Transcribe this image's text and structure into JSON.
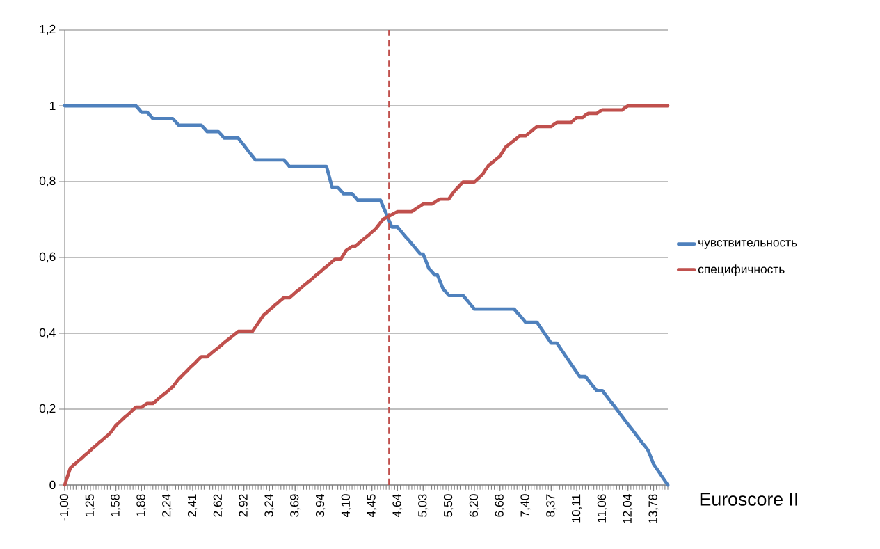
{
  "chart_data": {
    "type": "line",
    "xlabel": "Euroscore II",
    "categories": [
      "-1,00",
      null,
      null,
      null,
      null,
      null,
      null,
      null,
      null,
      "1,25",
      null,
      null,
      null,
      null,
      null,
      null,
      null,
      null,
      "1,58",
      null,
      null,
      null,
      null,
      null,
      null,
      null,
      null,
      "1,88",
      null,
      null,
      null,
      null,
      null,
      null,
      null,
      null,
      "2,24",
      null,
      null,
      null,
      null,
      null,
      null,
      null,
      null,
      "2,41",
      null,
      null,
      null,
      null,
      null,
      null,
      null,
      null,
      "2,62",
      null,
      null,
      null,
      null,
      null,
      null,
      null,
      null,
      "2,92",
      null,
      null,
      null,
      null,
      null,
      null,
      null,
      null,
      "3,24",
      null,
      null,
      null,
      null,
      null,
      null,
      null,
      null,
      "3,69",
      null,
      null,
      null,
      null,
      null,
      null,
      null,
      null,
      "3,94",
      null,
      null,
      null,
      null,
      null,
      null,
      null,
      null,
      "4,10",
      null,
      null,
      null,
      null,
      null,
      null,
      null,
      null,
      "4,45",
      null,
      null,
      null,
      null,
      null,
      null,
      null,
      null,
      "4,64",
      null,
      null,
      null,
      null,
      null,
      null,
      null,
      null,
      "5,03",
      null,
      null,
      null,
      null,
      null,
      null,
      null,
      null,
      "5,50",
      null,
      null,
      null,
      null,
      null,
      null,
      null,
      null,
      "6,20",
      null,
      null,
      null,
      null,
      null,
      null,
      null,
      null,
      "6,68",
      null,
      null,
      null,
      null,
      null,
      null,
      null,
      null,
      "7,40",
      null,
      null,
      null,
      null,
      null,
      null,
      null,
      null,
      "8,37",
      null,
      null,
      null,
      null,
      null,
      null,
      null,
      null,
      "10,11",
      null,
      null,
      null,
      null,
      null,
      null,
      null,
      null,
      "11,06",
      null,
      null,
      null,
      null,
      null,
      null,
      null,
      null,
      "12,04",
      null,
      null,
      null,
      null,
      null,
      null,
      null,
      null,
      "13,78",
      null,
      null,
      null,
      null,
      null
    ],
    "series": [
      {
        "name": "чувствительность",
        "color": "#4f81bd",
        "values": [
          1,
          1,
          1,
          1,
          1,
          1,
          1,
          1,
          1,
          1,
          1,
          1,
          1,
          1,
          1,
          1,
          1,
          1,
          1,
          1,
          1,
          1,
          1,
          1,
          1,
          1,
          0.992,
          0.983,
          0.983,
          0.983,
          0.975,
          0.966,
          0.966,
          0.966,
          0.966,
          0.966,
          0.966,
          0.966,
          0.966,
          0.958,
          0.949,
          0.949,
          0.949,
          0.949,
          0.949,
          0.949,
          0.949,
          0.949,
          0.949,
          0.941,
          0.932,
          0.932,
          0.932,
          0.932,
          0.932,
          0.924,
          0.915,
          0.915,
          0.915,
          0.915,
          0.915,
          0.915,
          0.905,
          0.896,
          0.886,
          0.876,
          0.867,
          0.857,
          0.857,
          0.857,
          0.857,
          0.857,
          0.857,
          0.857,
          0.857,
          0.857,
          0.857,
          0.857,
          0.849,
          0.84,
          0.84,
          0.84,
          0.84,
          0.84,
          0.84,
          0.84,
          0.84,
          0.84,
          0.84,
          0.84,
          0.84,
          0.84,
          0.84,
          0.813,
          0.785,
          0.785,
          0.785,
          0.777,
          0.768,
          0.768,
          0.768,
          0.768,
          0.76,
          0.751,
          0.751,
          0.751,
          0.751,
          0.751,
          0.751,
          0.751,
          0.751,
          0.751,
          0.733,
          0.716,
          0.698,
          0.68,
          0.68,
          0.68,
          0.671,
          0.662,
          0.653,
          0.645,
          0.636,
          0.627,
          0.618,
          0.609,
          0.609,
          0.59,
          0.571,
          0.563,
          0.554,
          0.554,
          0.536,
          0.517,
          0.509,
          0.5,
          0.5,
          0.5,
          0.5,
          0.5,
          0.5,
          0.491,
          0.482,
          0.473,
          0.464,
          0.464,
          0.464,
          0.464,
          0.464,
          0.464,
          0.464,
          0.464,
          0.464,
          0.464,
          0.464,
          0.464,
          0.464,
          0.464,
          0.464,
          0.455,
          0.447,
          0.438,
          0.429,
          0.429,
          0.429,
          0.429,
          0.429,
          0.418,
          0.407,
          0.396,
          0.385,
          0.374,
          0.374,
          0.374,
          0.363,
          0.352,
          0.341,
          0.33,
          0.319,
          0.308,
          0.297,
          0.286,
          0.286,
          0.286,
          0.277,
          0.267,
          0.258,
          0.249,
          0.249,
          0.249,
          0.239,
          0.229,
          0.219,
          0.21,
          0.2,
          0.19,
          0.18,
          0.17,
          0.16,
          0.151,
          0.141,
          0.131,
          0.121,
          0.111,
          0.102,
          0.092,
          0.074,
          0.055,
          0.044,
          0.033,
          0.022,
          0.011,
          0
        ]
      },
      {
        "name": "специфичность",
        "color": "#c0504d",
        "values": [
          0,
          0.023,
          0.045,
          0.052,
          0.058,
          0.065,
          0.071,
          0.078,
          0.084,
          0.091,
          0.098,
          0.104,
          0.111,
          0.117,
          0.124,
          0.13,
          0.137,
          0.147,
          0.157,
          0.164,
          0.171,
          0.178,
          0.184,
          0.191,
          0.198,
          0.205,
          0.205,
          0.205,
          0.21,
          0.215,
          0.215,
          0.215,
          0.221,
          0.228,
          0.234,
          0.24,
          0.246,
          0.253,
          0.259,
          0.269,
          0.279,
          0.286,
          0.294,
          0.301,
          0.309,
          0.316,
          0.323,
          0.331,
          0.338,
          0.338,
          0.338,
          0.344,
          0.35,
          0.356,
          0.362,
          0.368,
          0.375,
          0.381,
          0.387,
          0.393,
          0.399,
          0.405,
          0.405,
          0.405,
          0.405,
          0.405,
          0.405,
          0.416,
          0.427,
          0.438,
          0.449,
          0.455,
          0.462,
          0.468,
          0.475,
          0.481,
          0.488,
          0.494,
          0.494,
          0.494,
          0.5,
          0.507,
          0.513,
          0.519,
          0.526,
          0.532,
          0.538,
          0.544,
          0.551,
          0.557,
          0.563,
          0.57,
          0.576,
          0.582,
          0.589,
          0.595,
          0.595,
          0.595,
          0.607,
          0.619,
          0.624,
          0.629,
          0.629,
          0.635,
          0.642,
          0.648,
          0.654,
          0.66,
          0.667,
          0.673,
          0.682,
          0.692,
          0.701,
          0.705,
          0.709,
          0.713,
          0.717,
          0.721,
          0.721,
          0.721,
          0.721,
          0.721,
          0.721,
          0.726,
          0.731,
          0.736,
          0.741,
          0.741,
          0.741,
          0.741,
          0.745,
          0.75,
          0.754,
          0.754,
          0.754,
          0.754,
          0.765,
          0.775,
          0.783,
          0.791,
          0.799,
          0.799,
          0.799,
          0.799,
          0.799,
          0.806,
          0.813,
          0.82,
          0.832,
          0.843,
          0.849,
          0.855,
          0.861,
          0.867,
          0.879,
          0.891,
          0.897,
          0.903,
          0.909,
          0.915,
          0.921,
          0.921,
          0.921,
          0.927,
          0.933,
          0.939,
          0.945,
          0.945,
          0.945,
          0.945,
          0.945,
          0.945,
          0.951,
          0.956,
          0.956,
          0.956,
          0.956,
          0.956,
          0.956,
          0.963,
          0.969,
          0.969,
          0.969,
          0.975,
          0.98,
          0.98,
          0.98,
          0.98,
          0.985,
          0.989,
          0.989,
          0.989,
          0.989,
          0.989,
          0.989,
          0.989,
          0.989,
          0.995,
          1,
          1,
          1,
          1,
          1,
          1,
          1,
          1,
          1,
          1,
          1,
          1,
          1,
          1,
          1
        ]
      }
    ],
    "ylim": [
      0,
      1.2
    ],
    "yticks": [
      0,
      {
        "value": 0.2,
        "label": "0,2"
      },
      {
        "value": 0.4,
        "label": "0,4"
      },
      {
        "value": 0.6,
        "label": "0,6"
      },
      {
        "value": 0.8,
        "label": "0,8"
      },
      1,
      {
        "value": 1.2,
        "label": "1,2"
      }
    ],
    "grid": "y",
    "legend": "right",
    "marker": "none",
    "line_style": "solid"
  }
}
